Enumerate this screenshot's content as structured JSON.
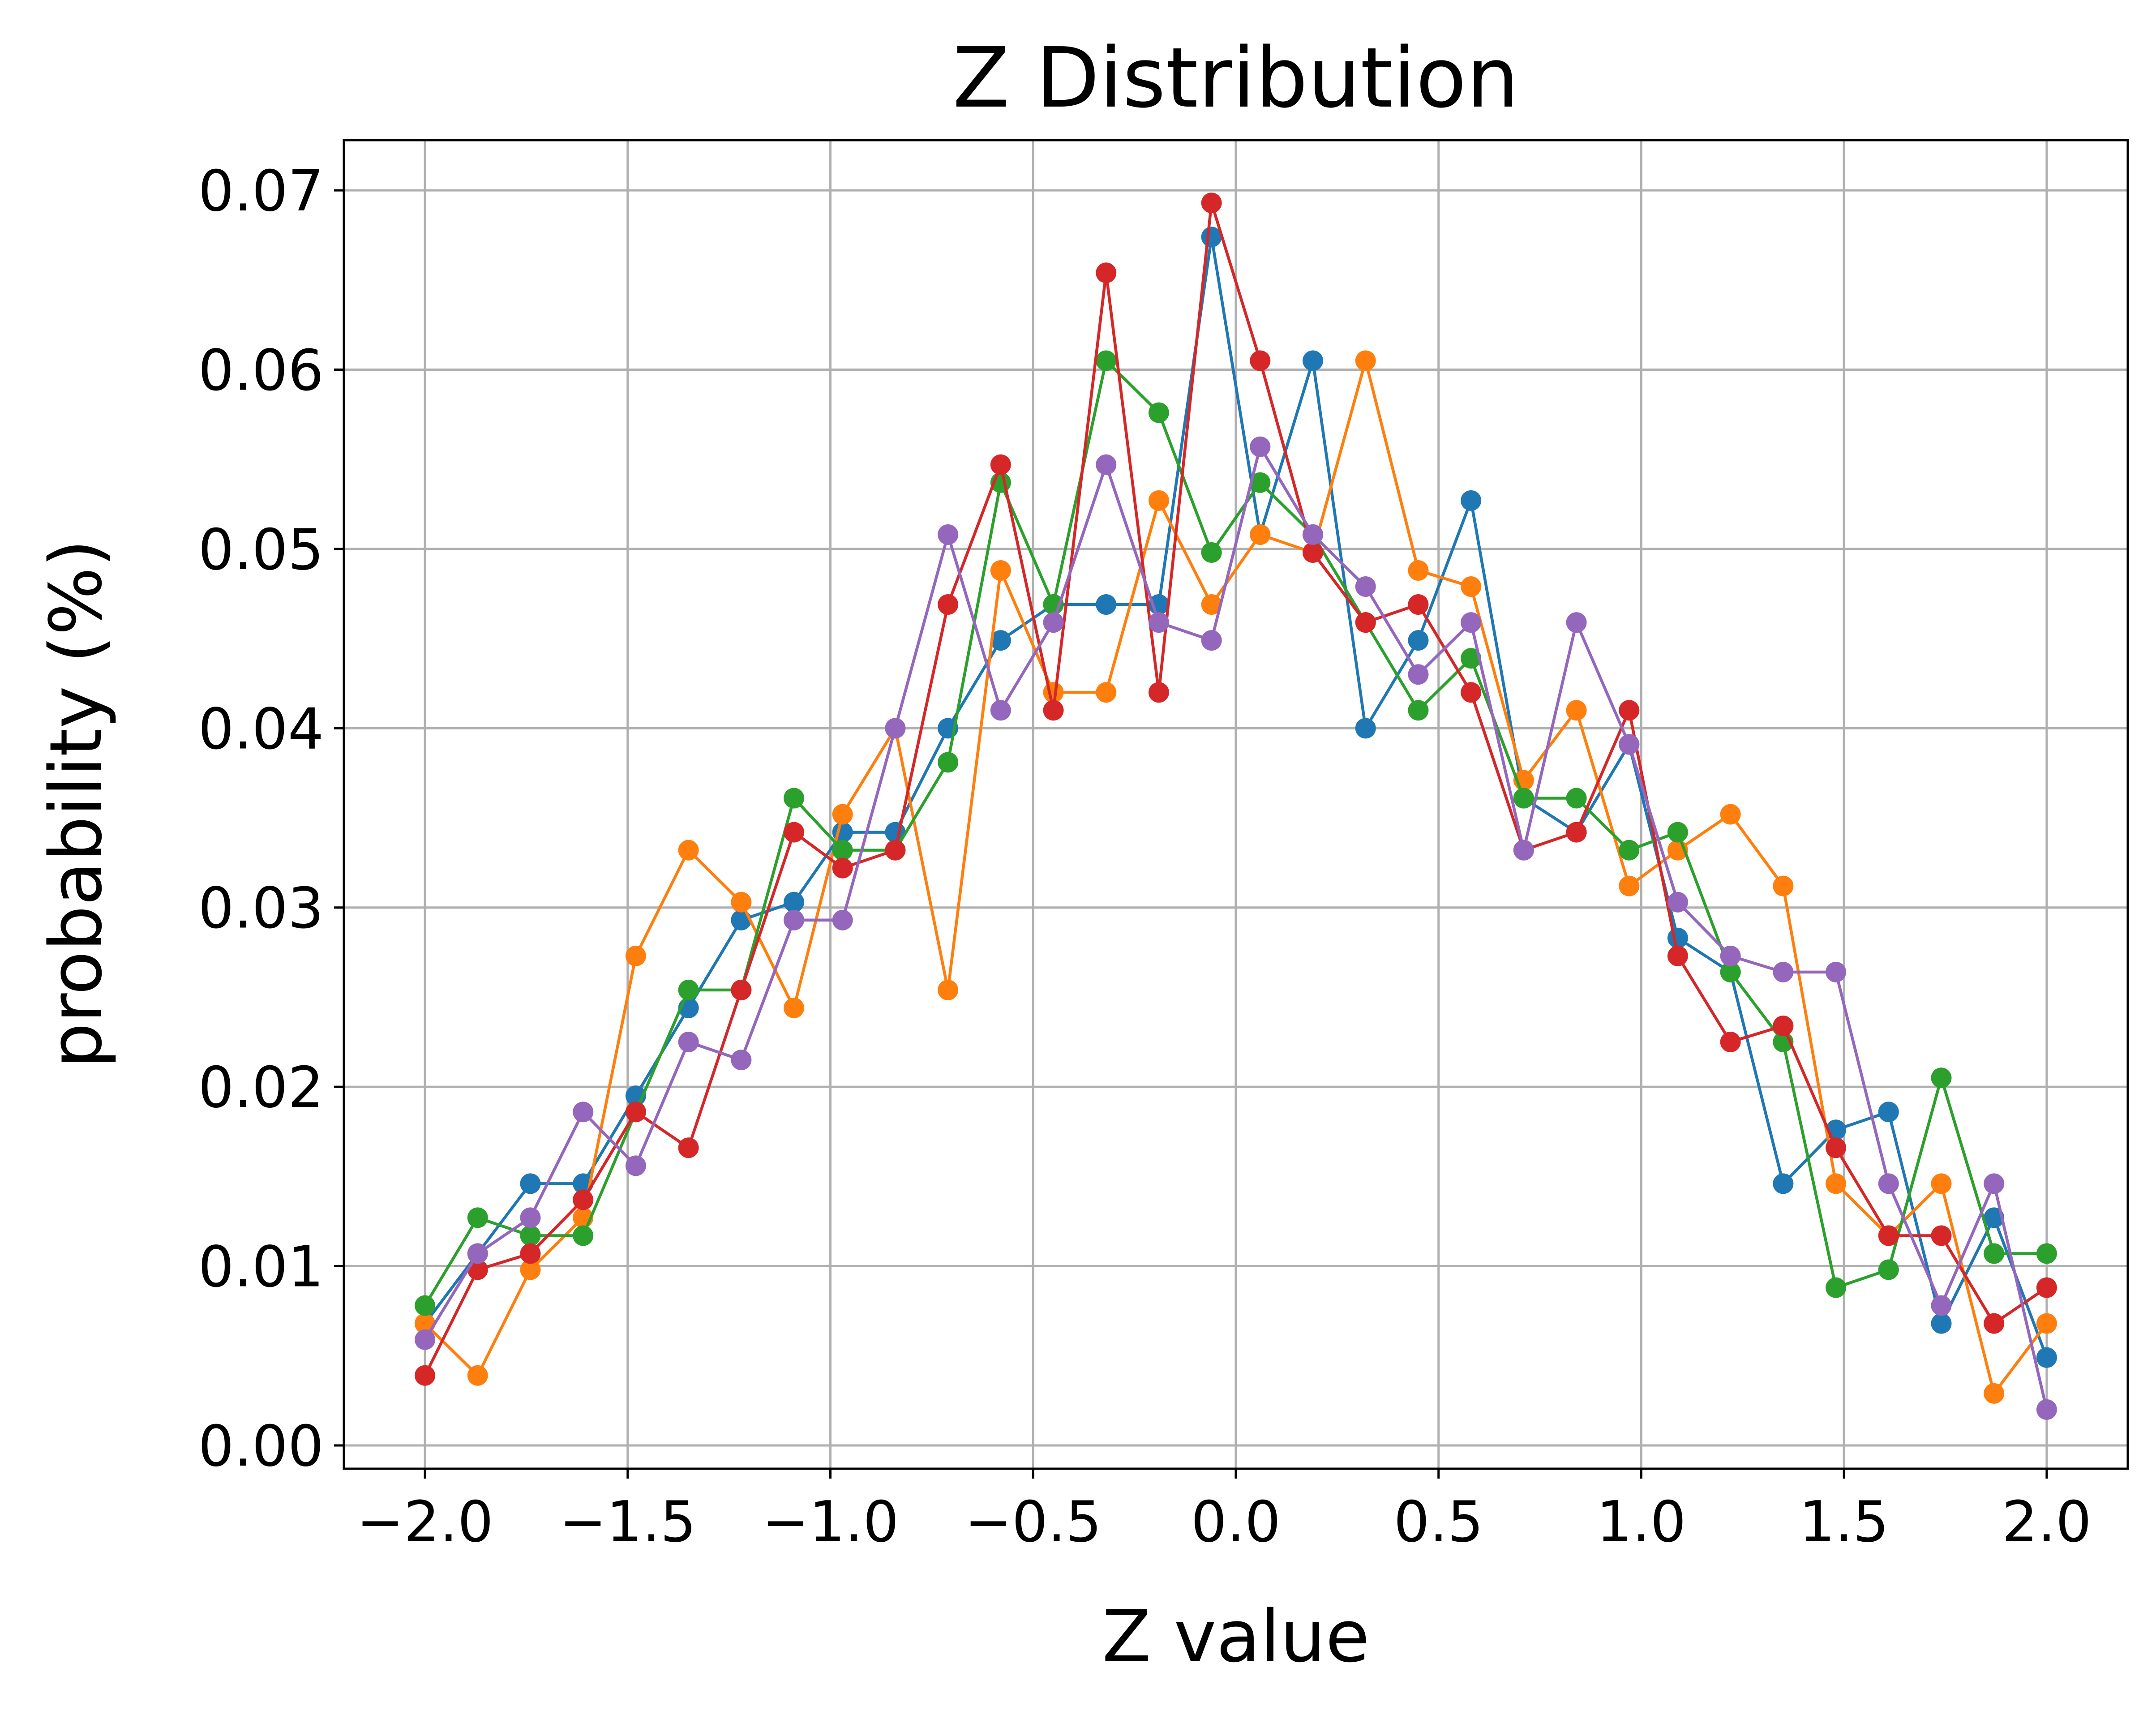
{
  "chart_data": {
    "type": "line",
    "title": "Z Distribution",
    "xlabel": "Z value",
    "ylabel": "probability (%)",
    "xlim": [
      -2.2,
      2.2
    ],
    "ylim": [
      -0.0013,
      0.0728
    ],
    "grid": true,
    "legend": "none",
    "x_ticks": [
      -2.0,
      -1.5,
      -1.0,
      -0.5,
      0.0,
      0.5,
      1.0,
      1.5,
      2.0
    ],
    "x_tick_labels": [
      "−2.0",
      "−1.5",
      "−1.0",
      "−0.5",
      "0.0",
      "0.5",
      "1.0",
      "1.5",
      "2.0"
    ],
    "y_ticks": [
      0.0,
      0.01,
      0.02,
      0.03,
      0.04,
      0.05,
      0.06,
      0.07
    ],
    "y_tick_labels": [
      "0.00",
      "0.01",
      "0.02",
      "0.03",
      "0.04",
      "0.05",
      "0.06",
      "0.07"
    ],
    "x": [
      -2.0,
      -1.87,
      -1.74,
      -1.61,
      -1.48,
      -1.35,
      -1.22,
      -1.09,
      -0.97,
      -0.84,
      -0.71,
      -0.58,
      -0.45,
      -0.32,
      -0.19,
      -0.06,
      0.06,
      0.19,
      0.32,
      0.45,
      0.58,
      0.71,
      0.84,
      0.97,
      1.09,
      1.22,
      1.35,
      1.48,
      1.61,
      1.74,
      1.87,
      2.0
    ],
    "series": [
      {
        "color": "#1f77b4",
        "values": [
          0.0068,
          0.0107,
          0.0146,
          0.0146,
          0.0195,
          0.0244,
          0.0293,
          0.0303,
          0.0342,
          0.0342,
          0.04,
          0.0449,
          0.0469,
          0.0469,
          0.0469,
          0.0674,
          0.0508,
          0.0605,
          0.04,
          0.0449,
          0.0527,
          0.0361,
          0.0342,
          0.0391,
          0.0283,
          0.0264,
          0.0146,
          0.0176,
          0.0186,
          0.0068,
          0.0127,
          0.0049
        ]
      },
      {
        "color": "#ff7f0e",
        "values": [
          0.0068,
          0.0039,
          0.0098,
          0.0127,
          0.0273,
          0.0332,
          0.0303,
          0.0244,
          0.0352,
          0.04,
          0.0254,
          0.0488,
          0.042,
          0.042,
          0.0527,
          0.0469,
          0.0508,
          0.0498,
          0.0605,
          0.0488,
          0.0479,
          0.0371,
          0.041,
          0.0312,
          0.0332,
          0.0352,
          0.0312,
          0.0146,
          0.0117,
          0.0146,
          0.0029,
          0.0068
        ]
      },
      {
        "color": "#2ca02c",
        "values": [
          0.0078,
          0.0127,
          0.0117,
          0.0117,
          0.0186,
          0.0254,
          0.0254,
          0.0361,
          0.0332,
          0.0332,
          0.0381,
          0.0537,
          0.0469,
          0.0605,
          0.0576,
          0.0498,
          0.0537,
          0.0508,
          0.0459,
          0.041,
          0.0439,
          0.0361,
          0.0361,
          0.0332,
          0.0342,
          0.0264,
          0.0225,
          0.0088,
          0.0098,
          0.0205,
          0.0107,
          0.0107
        ]
      },
      {
        "color": "#d62728",
        "values": [
          0.0039,
          0.0098,
          0.0107,
          0.0137,
          0.0186,
          0.0166,
          0.0254,
          0.0342,
          0.0322,
          0.0332,
          0.0469,
          0.0547,
          0.041,
          0.0654,
          0.042,
          0.0693,
          0.0605,
          0.0498,
          0.0459,
          0.0469,
          0.042,
          0.0332,
          0.0342,
          0.041,
          0.0273,
          0.0225,
          0.0234,
          0.0166,
          0.0117,
          0.0117,
          0.0068,
          0.0088
        ]
      },
      {
        "color": "#9467bd",
        "values": [
          0.0059,
          0.0107,
          0.0127,
          0.0186,
          0.0156,
          0.0225,
          0.0215,
          0.0293,
          0.0293,
          0.04,
          0.0508,
          0.041,
          0.0459,
          0.0547,
          0.0459,
          0.0449,
          0.0557,
          0.0508,
          0.0479,
          0.043,
          0.0459,
          0.0332,
          0.0459,
          0.0391,
          0.0303,
          0.0273,
          0.0264,
          0.0264,
          0.0146,
          0.0078,
          0.0146,
          0.002
        ]
      }
    ]
  }
}
